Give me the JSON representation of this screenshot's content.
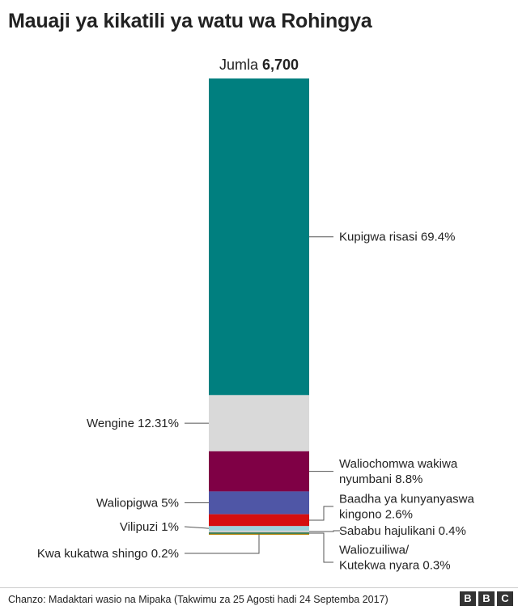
{
  "title": "Mauaji ya kikatili ya watu wa Rohingya",
  "total": {
    "label": "Jumla",
    "value": "6,700"
  },
  "source": "Chanzo: Madaktari wasio na Mipaka (Takwimu za 25 Agosti hadi 24 Septemba 2017)",
  "logo": [
    "B",
    "B",
    "C"
  ],
  "chart_data": {
    "type": "bar",
    "stacked": true,
    "total": 6700,
    "unit": "%",
    "segments": [
      {
        "label": "Kupigwa risasi 69.4%",
        "value": 69.4,
        "color": "#007f7f",
        "side": "right"
      },
      {
        "label": "Wengine 12.31%",
        "value": 12.31,
        "color": "#d9d9d9",
        "side": "left"
      },
      {
        "label": "Waliochomwa wakiwa nyumbani 8.8%",
        "lines": [
          "Waliochomwa wakiwa",
          "nyumbani 8.8%"
        ],
        "value": 8.8,
        "color": "#7f0045",
        "side": "right"
      },
      {
        "label": "Waliopigwa 5%",
        "value": 5,
        "color": "#4f56a6",
        "side": "left"
      },
      {
        "label": "Baadha ya kunyanyaswa kingono 2.6%",
        "lines": [
          "Baadha ya kunyanyaswa",
          "kingono 2.6%"
        ],
        "value": 2.6,
        "color": "#d50f0f",
        "side": "right"
      },
      {
        "label": "Vilipuzi 1%",
        "value": 1,
        "color": "#9cd3dc",
        "side": "left"
      },
      {
        "label": "Sababu hajulikani 0.4%",
        "value": 0.4,
        "color": "#cfcfcf",
        "side": "right"
      },
      {
        "label": "Waliozuiliwa/ Kutekwa nyara 0.3%",
        "lines": [
          "Waliozuiliwa/",
          "Kutekwa nyara 0.3%"
        ],
        "value": 0.3,
        "color": "#1f6e43",
        "side": "right"
      },
      {
        "label": "Kwa kukatwa shingo 0.2%",
        "value": 0.2,
        "color": "#b8860b",
        "side": "left"
      }
    ]
  }
}
